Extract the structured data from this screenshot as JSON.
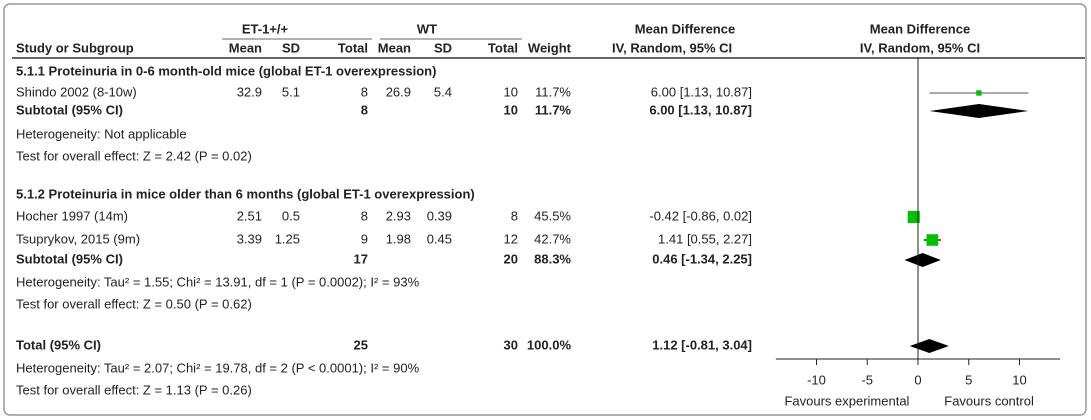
{
  "chart_data": {
    "type": "forest",
    "group_headers": [
      "ET-1+/+",
      "WT",
      "Mean Difference",
      "Mean Difference"
    ],
    "columns": [
      "Study or Subgroup",
      "Mean",
      "SD",
      "Total",
      "Mean",
      "SD",
      "Total",
      "Weight",
      "IV, Random, 95% CI",
      "IV, Random, 95% CI"
    ],
    "sections": [
      {
        "title": "5.1.1 Proteinuria in 0-6 month-old mice (global ET-1 overexpression)",
        "studies": [
          {
            "name": "Shindo 2002 (8-10w)",
            "exp_mean": 32.9,
            "exp_sd": 5.1,
            "exp_total": 8,
            "ctl_mean": 26.9,
            "ctl_sd": 5.4,
            "ctl_total": 10,
            "weight": {
              "value": 11.7,
              "label": "11.7%"
            },
            "ci_label": "6.00 [1.13, 10.87]",
            "md": 6.0,
            "lo": 1.13,
            "hi": 10.87
          }
        ],
        "subtotal": {
          "name": "Subtotal (95% CI)",
          "exp_total": 8,
          "ctl_total": 10,
          "weight": {
            "value": 11.7,
            "label": "11.7%"
          },
          "ci_label": "6.00 [1.13, 10.87]",
          "md": 6.0,
          "lo": 1.13,
          "hi": 10.87
        },
        "heterogeneity": "Heterogeneity: Not applicable",
        "overall_effect": "Test for overall effect: Z = 2.42 (P = 0.02)"
      },
      {
        "title": "5.1.2 Proteinuria in mice older than 6 months (global ET-1 overexpression)",
        "studies": [
          {
            "name": "Hocher 1997 (14m)",
            "exp_mean": 2.51,
            "exp_sd": 0.5,
            "exp_total": 8,
            "ctl_mean": 2.93,
            "ctl_sd": 0.39,
            "ctl_total": 8,
            "weight": {
              "value": 45.5,
              "label": "45.5%"
            },
            "ci_label": "-0.42 [-0.86, 0.02]",
            "md": -0.42,
            "lo": -0.86,
            "hi": 0.02
          },
          {
            "name": "Tsuprykov, 2015 (9m)",
            "exp_mean": 3.39,
            "exp_sd": 1.25,
            "exp_total": 9,
            "ctl_mean": 1.98,
            "ctl_sd": 0.45,
            "ctl_total": 12,
            "weight": {
              "value": 42.7,
              "label": "42.7%"
            },
            "ci_label": "1.41 [0.55, 2.27]",
            "md": 1.41,
            "lo": 0.55,
            "hi": 2.27
          }
        ],
        "subtotal": {
          "name": "Subtotal (95% CI)",
          "exp_total": 17,
          "ctl_total": 20,
          "weight": {
            "value": 88.3,
            "label": "88.3%"
          },
          "ci_label": "0.46 [-1.34, 2.25]",
          "md": 0.46,
          "lo": -1.34,
          "hi": 2.25
        },
        "heterogeneity": "Heterogeneity: Tau² = 1.55; Chi² = 13.91, df = 1 (P = 0.0002); I² = 93%",
        "overall_effect": "Test for overall effect: Z = 0.50 (P = 0.62)"
      }
    ],
    "total": {
      "name": "Total (95% CI)",
      "exp_total": 25,
      "ctl_total": 30,
      "weight": {
        "value": 100.0,
        "label": "100.0%"
      },
      "ci_label": "1.12 [-0.81, 3.04]",
      "md": 1.12,
      "lo": -0.81,
      "hi": 3.04
    },
    "total_heterogeneity": "Heterogeneity: Tau² = 2.07; Chi² = 19.78, df = 2 (P < 0.0001); I² = 90%",
    "total_overall_effect": "Test for overall effect: Z = 1.13 (P = 0.26)",
    "xlim": [
      -14,
      14
    ],
    "xticks": [
      -10,
      -5,
      0,
      5,
      10
    ],
    "favours_left": "Favours experimental",
    "favours_right": "Favours control",
    "square_color": "#00c000",
    "diamond_color": "#000000"
  }
}
